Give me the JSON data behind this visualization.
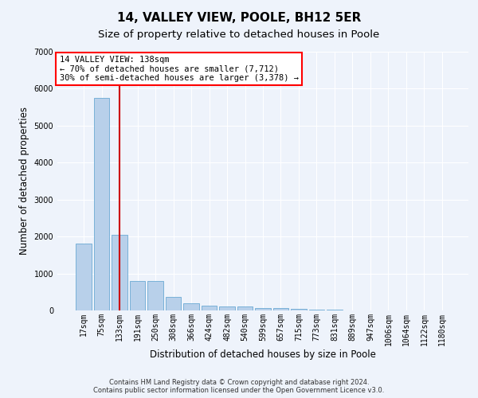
{
  "title": "14, VALLEY VIEW, POOLE, BH12 5ER",
  "subtitle": "Size of property relative to detached houses in Poole",
  "xlabel": "Distribution of detached houses by size in Poole",
  "ylabel": "Number of detached properties",
  "categories": [
    "17sqm",
    "75sqm",
    "133sqm",
    "191sqm",
    "250sqm",
    "308sqm",
    "366sqm",
    "424sqm",
    "482sqm",
    "540sqm",
    "599sqm",
    "657sqm",
    "715sqm",
    "773sqm",
    "831sqm",
    "889sqm",
    "947sqm",
    "1006sqm",
    "1064sqm",
    "1122sqm",
    "1180sqm"
  ],
  "values": [
    1800,
    5750,
    2050,
    800,
    800,
    370,
    200,
    120,
    100,
    100,
    70,
    70,
    50,
    20,
    15,
    10,
    8,
    5,
    3,
    2,
    0
  ],
  "bar_color": "#b8d0ea",
  "bar_edge_color": "#6aaad4",
  "highlight_index": 2,
  "highlight_color": "#cc0000",
  "ylim": [
    0,
    7000
  ],
  "yticks": [
    0,
    1000,
    2000,
    3000,
    4000,
    5000,
    6000,
    7000
  ],
  "annotation_line1": "14 VALLEY VIEW: 138sqm",
  "annotation_line2": "← 70% of detached houses are smaller (7,712)",
  "annotation_line3": "30% of semi-detached houses are larger (3,378) →",
  "footer_line1": "Contains HM Land Registry data © Crown copyright and database right 2024.",
  "footer_line2": "Contains public sector information licensed under the Open Government Licence v3.0.",
  "bg_color": "#eef3fb",
  "grid_color": "#ffffff",
  "title_fontsize": 11,
  "subtitle_fontsize": 9.5,
  "axis_label_fontsize": 8.5,
  "ylabel_fontsize": 8.5,
  "tick_fontsize": 7,
  "footer_fontsize": 6,
  "annotation_fontsize": 7.5
}
